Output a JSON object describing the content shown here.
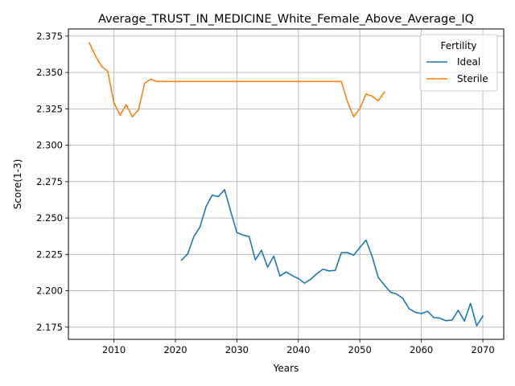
{
  "chart_data": {
    "type": "line",
    "title": "Average_TRUST_IN_MEDICINE_White_Female_Above_Average_IQ",
    "xlabel": "Years",
    "ylabel": "Score(1-3)",
    "xlim": [
      2002.6,
      2073.4
    ],
    "ylim": [
      2.1666,
      2.3799
    ],
    "xticks": [
      2010,
      2020,
      2030,
      2040,
      2050,
      2060,
      2070
    ],
    "yticks": [
      2.175,
      2.2,
      2.225,
      2.25,
      2.275,
      2.3,
      2.325,
      2.35,
      2.375
    ],
    "xtick_labels": [
      "2010",
      "2020",
      "2030",
      "2040",
      "2050",
      "2060",
      "2070"
    ],
    "ytick_labels": [
      "2.175",
      "2.200",
      "2.225",
      "2.250",
      "2.275",
      "2.300",
      "2.325",
      "2.350",
      "2.375"
    ],
    "grid": true,
    "legend": {
      "title": "Fertility",
      "placement": "top-right"
    },
    "series": [
      {
        "name": "Ideal",
        "color": "#1f77b4",
        "x": [
          2021,
          2022,
          2023,
          2024,
          2025,
          2026,
          2027,
          2028,
          2029,
          2030,
          2031,
          2032,
          2033,
          2034,
          2035,
          2036,
          2037,
          2038,
          2039,
          2040,
          2041,
          2042,
          2043,
          2044,
          2045,
          2046,
          2047,
          2048,
          2049,
          2050,
          2051,
          2052,
          2053,
          2054,
          2055,
          2056,
          2057,
          2058,
          2059,
          2060,
          2061,
          2062,
          2063,
          2064,
          2065,
          2066,
          2067,
          2068,
          2069,
          2070
        ],
        "y": [
          2.221,
          2.2253,
          2.2372,
          2.2438,
          2.258,
          2.2657,
          2.2647,
          2.2695,
          2.2545,
          2.24,
          2.2382,
          2.2373,
          2.2212,
          2.2278,
          2.2162,
          2.2238,
          2.2101,
          2.2129,
          2.2104,
          2.2084,
          2.2052,
          2.2079,
          2.2117,
          2.2148,
          2.2136,
          2.214,
          2.2262,
          2.2262,
          2.2244,
          2.2297,
          2.2348,
          2.2235,
          2.2091,
          2.2038,
          2.199,
          2.1977,
          2.1947,
          2.1877,
          2.1852,
          2.1843,
          2.1859,
          2.1816,
          2.1812,
          2.1794,
          2.1799,
          2.1866,
          2.1792,
          2.1913,
          2.1759,
          2.1826
        ]
      },
      {
        "name": "Sterile",
        "color": "#ff7f0e",
        "x": [
          2006,
          2007,
          2008,
          2009,
          2010,
          2011,
          2012,
          2013,
          2014,
          2015,
          2016,
          2017,
          2018,
          2019,
          2020,
          2021,
          2022,
          2023,
          2024,
          2025,
          2026,
          2027,
          2028,
          2029,
          2030,
          2031,
          2032,
          2033,
          2034,
          2035,
          2036,
          2037,
          2038,
          2039,
          2040,
          2041,
          2042,
          2043,
          2044,
          2045,
          2046,
          2047,
          2048,
          2049,
          2050,
          2051,
          2052,
          2053,
          2054
        ],
        "y": [
          2.3703,
          2.3614,
          2.3542,
          2.3508,
          2.3292,
          2.3207,
          2.3278,
          2.3195,
          2.3243,
          2.3426,
          2.3454,
          2.3438,
          2.3438,
          2.3438,
          2.3438,
          2.3438,
          2.3438,
          2.3438,
          2.3438,
          2.3438,
          2.3438,
          2.3438,
          2.3438,
          2.3438,
          2.3438,
          2.3438,
          2.3438,
          2.3438,
          2.3438,
          2.3438,
          2.3438,
          2.3438,
          2.3438,
          2.3438,
          2.3438,
          2.3438,
          2.3438,
          2.3438,
          2.3438,
          2.3438,
          2.3438,
          2.3438,
          2.3297,
          2.3195,
          2.3252,
          2.3352,
          2.3337,
          2.3306,
          2.3366
        ]
      }
    ]
  }
}
